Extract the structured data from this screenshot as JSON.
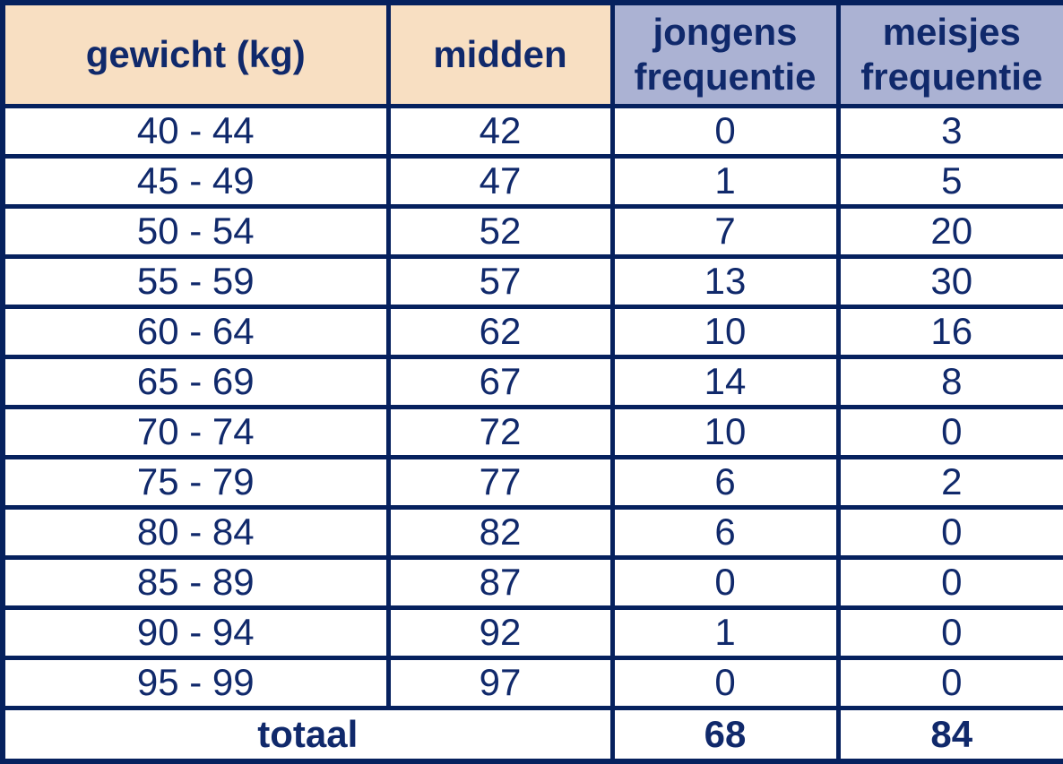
{
  "colors": {
    "border_navy": "#06215e",
    "text_navy": "#10296b",
    "header_peach": "#f8dfc2",
    "header_blue": "#abb2d3",
    "cell_background": "#ffffff"
  },
  "header": {
    "col_gewicht": "gewicht (kg)",
    "col_midden": "midden",
    "col_jongens_line1": "jongens",
    "col_jongens_line2": "frequentie",
    "col_meisjes_line1": "meisjes",
    "col_meisjes_line2": "frequentie"
  },
  "rows": [
    {
      "gewicht": "40 - 44",
      "midden": "42",
      "jongens": "0",
      "meisjes": "3"
    },
    {
      "gewicht": "45 - 49",
      "midden": "47",
      "jongens": "1",
      "meisjes": "5"
    },
    {
      "gewicht": "50 - 54",
      "midden": "52",
      "jongens": "7",
      "meisjes": "20"
    },
    {
      "gewicht": "55 - 59",
      "midden": "57",
      "jongens": "13",
      "meisjes": "30"
    },
    {
      "gewicht": "60 - 64",
      "midden": "62",
      "jongens": "10",
      "meisjes": "16"
    },
    {
      "gewicht": "65 - 69",
      "midden": "67",
      "jongens": "14",
      "meisjes": "8"
    },
    {
      "gewicht": "70 - 74",
      "midden": "72",
      "jongens": "10",
      "meisjes": "0"
    },
    {
      "gewicht": "75 - 79",
      "midden": "77",
      "jongens": "6",
      "meisjes": "2"
    },
    {
      "gewicht": "80 - 84",
      "midden": "82",
      "jongens": "6",
      "meisjes": "0"
    },
    {
      "gewicht": "85 - 89",
      "midden": "87",
      "jongens": "0",
      "meisjes": "0"
    },
    {
      "gewicht": "90 - 94",
      "midden": "92",
      "jongens": "1",
      "meisjes": "0"
    },
    {
      "gewicht": "95 - 99",
      "midden": "97",
      "jongens": "0",
      "meisjes": "0"
    }
  ],
  "total": {
    "label": "totaal",
    "jongens": "68",
    "meisjes": "84"
  },
  "chart_data": {
    "type": "table",
    "title": "",
    "columns": [
      "gewicht (kg)",
      "midden",
      "jongens frequentie",
      "meisjes frequentie"
    ],
    "categories": [
      "40 - 44",
      "45 - 49",
      "50 - 54",
      "55 - 59",
      "60 - 64",
      "65 - 69",
      "70 - 74",
      "75 - 79",
      "80 - 84",
      "85 - 89",
      "90 - 94",
      "95 - 99"
    ],
    "midden_values": [
      42,
      47,
      52,
      57,
      62,
      67,
      72,
      77,
      82,
      87,
      92,
      97
    ],
    "series": [
      {
        "name": "jongens frequentie",
        "values": [
          0,
          1,
          7,
          13,
          10,
          14,
          10,
          6,
          6,
          0,
          1,
          0
        ],
        "total": 68
      },
      {
        "name": "meisjes frequentie",
        "values": [
          3,
          5,
          20,
          30,
          16,
          8,
          0,
          2,
          0,
          0,
          0,
          0
        ],
        "total": 84
      }
    ],
    "total_row_label": "totaal"
  }
}
